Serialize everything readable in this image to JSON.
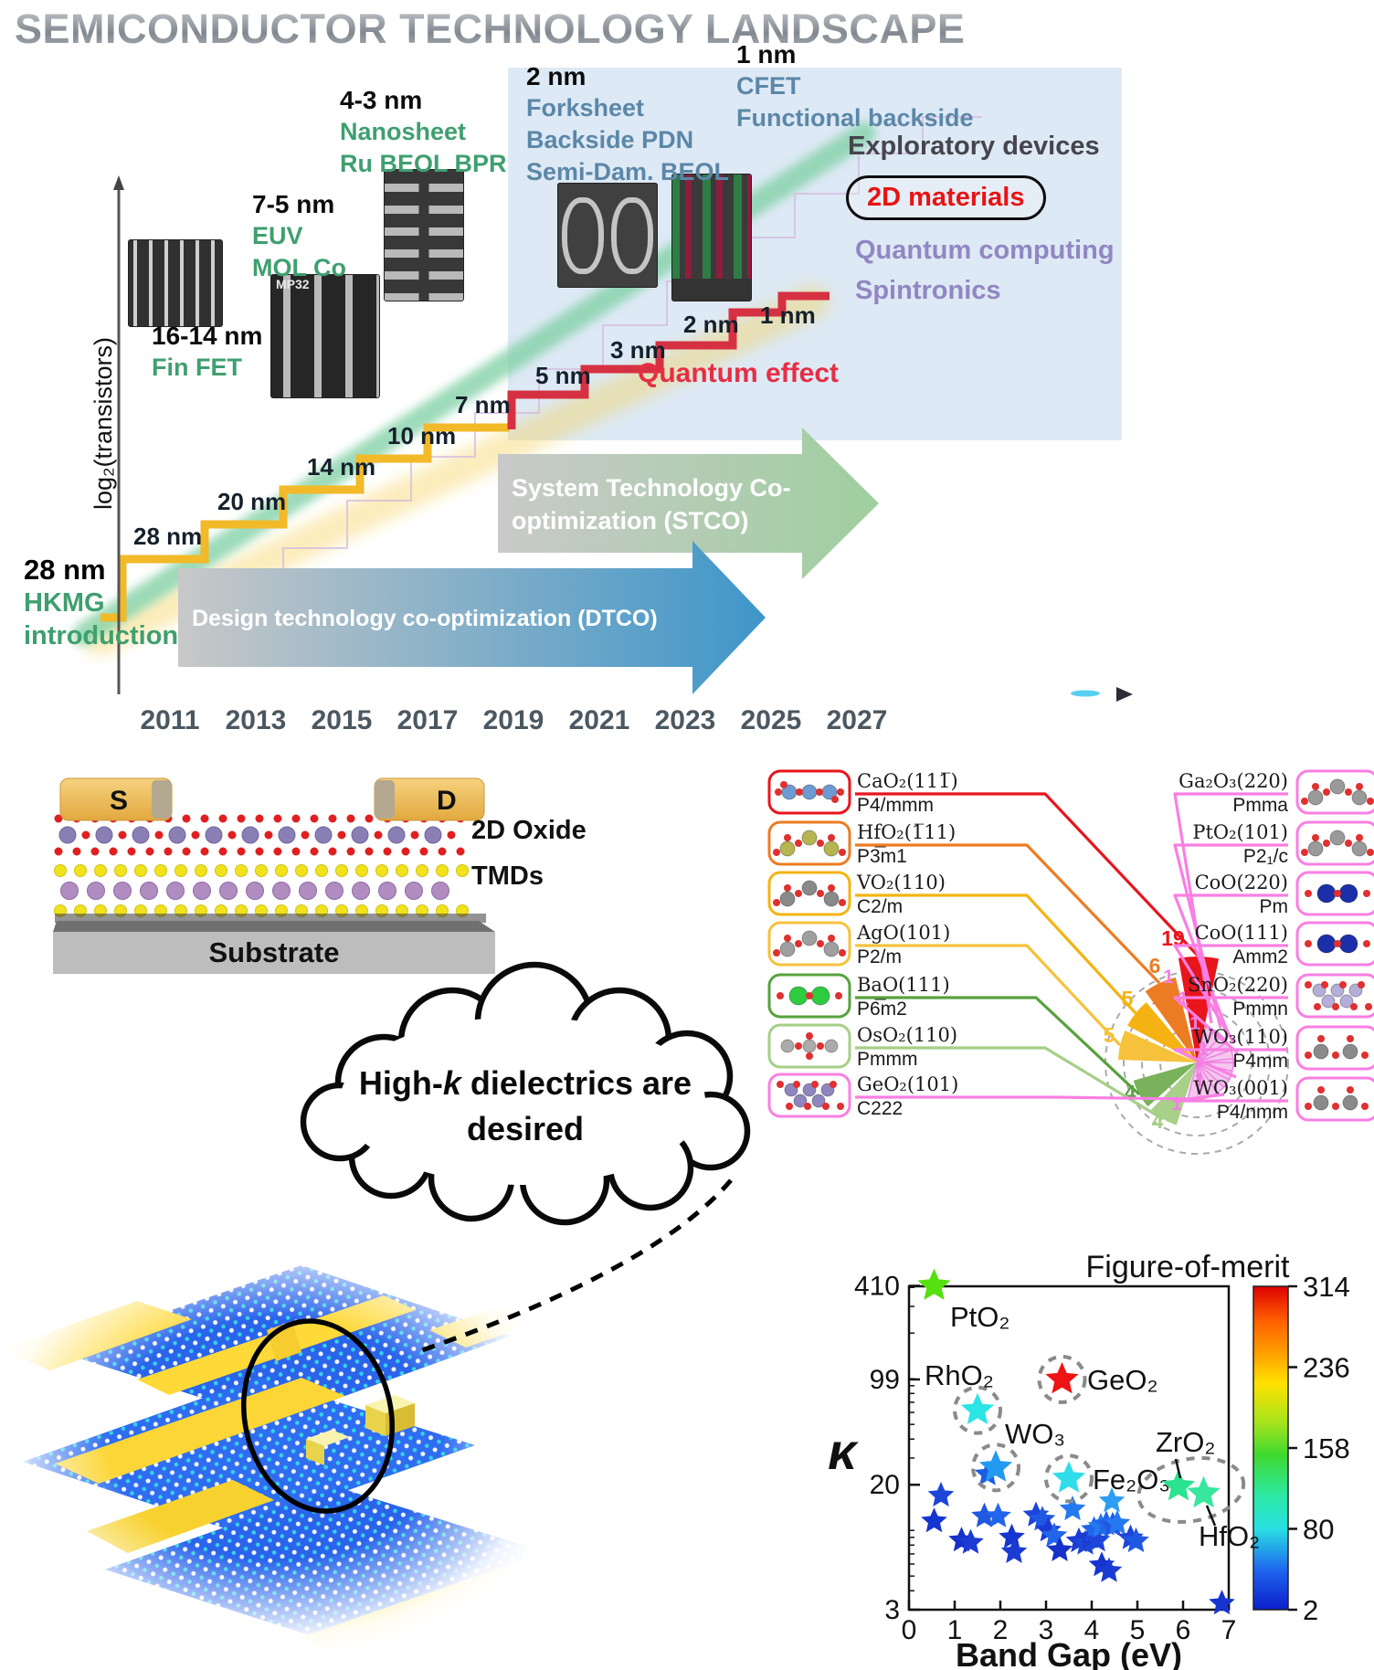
{
  "title": "SEMICONDUCTOR TECHNOLOGY LANDSCAPE",
  "roadmap": {
    "y_axis_label": "log₂(transistors)",
    "x_years": [
      "2011",
      "2013",
      "2015",
      "2017",
      "2019",
      "2021",
      "2023",
      "2025",
      "2027"
    ],
    "node_steps": [
      "28 nm",
      "20 nm",
      "14 nm",
      "10 nm",
      "7 nm",
      "5 nm",
      "3 nm",
      "2 nm",
      "1 nm"
    ],
    "milestones": [
      {
        "node": "16-14 nm",
        "lines": [
          "Fin FET"
        ],
        "palette": "green"
      },
      {
        "node": "7-5 nm",
        "lines": [
          "EUV",
          "MOL Co"
        ],
        "palette": "green"
      },
      {
        "node": "4-3 nm",
        "lines": [
          "Nanosheet",
          "Ru BEOL BPR"
        ],
        "palette": "green"
      },
      {
        "node": "2 nm",
        "lines": [
          "Forksheet",
          "Backside PDN",
          "Semi-Dam. BEOL"
        ],
        "palette": "blue"
      },
      {
        "node": "1 nm",
        "lines": [
          "CFET",
          "Functional backside"
        ],
        "palette": "blue"
      }
    ],
    "start_node": "28 nm",
    "start_lines": [
      "HKMG",
      "introduction"
    ],
    "exploratory_title": "Exploratory devices",
    "exploratory_highlight": "2D materials",
    "exploratory_items": [
      "Quantum computing",
      "Spintronics"
    ],
    "quantum_effect": "Quantum effect",
    "stco_line1": "System Technology Co-",
    "stco_line2": "optimization (STCO)",
    "dtco": "Design technology co-optimization (DTCO)",
    "tem_caption": "MP32"
  },
  "device": {
    "source": "S",
    "drain": "D",
    "layers": [
      "2D Oxide",
      "TMDs",
      "Substrate"
    ],
    "colors": {
      "oxygen": "#e02020",
      "oxide_metal": "#8a7fb5",
      "chalcogen": "#f2e21c",
      "tmd_metal": "#b08cc0",
      "contact_gold": "#f0b95a",
      "substrate": "#bdbdbd"
    }
  },
  "cloud": {
    "line1_pre": "High-",
    "line1_k": "k",
    "line1_post": " dielectrics are",
    "line2": "desired"
  },
  "colors": {
    "green_label": "#3f9f6f",
    "blue_label": "#5b87a8",
    "purple_label": "#9186c2",
    "dark_label": "#45454e",
    "red_accent": "#e81313",
    "quantum_region": "#dde9f5",
    "staircase_yellow": "#f2b929",
    "staircase_red": "#d63142",
    "trend_green": "#84d2a8",
    "stco_end": "#9fcf9f",
    "dtco_end": "#3f96c9"
  },
  "chart_data": [
    {
      "type": "polar_count",
      "title": "",
      "rings": [
        1,
        2,
        3,
        4
      ],
      "wedges": [
        {
          "material": "CaO₂(111̅)",
          "space_group": "P4/mmm",
          "count": 19,
          "color": "#e8151c",
          "wedge_fill": "#e8151c",
          "icon": "chain",
          "atom_color": "#6b9bd2",
          "side": "left"
        },
        {
          "material": "HfO₂(1̅11)",
          "space_group": "P3̅m1",
          "count": 6,
          "color": "#ec7c23",
          "wedge_fill": "#ec7c23",
          "icon": "zigzag",
          "atom_color": "#b5b551",
          "side": "left"
        },
        {
          "material": "VO₂(110)",
          "space_group": "C2/m",
          "count": 5,
          "color": "#f4b312",
          "wedge_fill": "#f4b312",
          "icon": "zigzag",
          "atom_color": "#8a8a8a",
          "side": "left"
        },
        {
          "material": "AgO(101)",
          "space_group": "P2/m",
          "count": 5,
          "color": "#f6c23c",
          "wedge_fill": "#f6c23c",
          "icon": "zigzag",
          "atom_color": "#9f9f9f",
          "side": "left"
        },
        {
          "material": "BaO(111)",
          "space_group": "P6̅m2",
          "count": 4,
          "color": "#57a23e",
          "wedge_fill": "#79b25a",
          "icon": "diatomic",
          "atom_color": "#2ecc40",
          "side": "left"
        },
        {
          "material": "OsO₂(110)",
          "space_group": "Pmmm",
          "count": 4,
          "color": "#a6cf87",
          "wedge_fill": "#a9d089",
          "icon": "cross",
          "atom_color": "#ababab",
          "side": "left"
        },
        {
          "material": "GeO₂(101)",
          "space_group": "C222",
          "count": 1,
          "color": "#f97fe3",
          "wedge_fill": "#f4c7ee",
          "icon": "cluster",
          "atom_color": "#8f86c0",
          "side": "left"
        },
        {
          "material": "Ga₂O₃(220)",
          "space_group": "Pmma",
          "count": 1,
          "color": "#f97fe3",
          "wedge_fill": "#f4c7ee",
          "icon": "zigzag",
          "atom_color": "#9a9a9a",
          "side": "right"
        },
        {
          "material": "PtO₂(101)",
          "space_group": "P2₁/c",
          "count": 1,
          "color": "#f97fe3",
          "wedge_fill": "#f4c7ee",
          "icon": "zigzag",
          "atom_color": "#9a9a9a",
          "side": "right"
        },
        {
          "material": "CoO(220)",
          "space_group": "Pm",
          "count": 1,
          "color": "#f97fe3",
          "wedge_fill": "#f4c7ee",
          "icon": "diatomic",
          "atom_color": "#1b2fa8",
          "side": "right"
        },
        {
          "material": "CoO(111)",
          "space_group": "Amm2",
          "count": 1,
          "color": "#f97fe3",
          "wedge_fill": "#f4c7ee",
          "icon": "diatomic",
          "atom_color": "#1b2fa8",
          "side": "right"
        },
        {
          "material": "SnO₂(220)",
          "space_group": "Pmmn",
          "count": 1,
          "color": "#f97fe3",
          "wedge_fill": "#f4c7ee",
          "icon": "cluster",
          "atom_color": "#b4aed8",
          "side": "right"
        },
        {
          "material": "WO₃(110)",
          "space_group": "P4mm",
          "count": 1,
          "color": "#f97fe3",
          "wedge_fill": "#f4c7ee",
          "icon": "branch",
          "atom_color": "#8a8a8a",
          "side": "right"
        },
        {
          "material": "WO₃(001)",
          "space_group": "P4/nmm",
          "count": 1,
          "color": "#f97fe3",
          "wedge_fill": "#f4c7ee",
          "icon": "branch",
          "atom_color": "#8a8a8a",
          "side": "right"
        }
      ]
    },
    {
      "type": "scatter",
      "xlabel": "Band Gap (eV)",
      "ylabel": "κ",
      "y_scale": "log",
      "x_ticks": [
        0,
        1,
        2,
        3,
        4,
        5,
        6,
        7
      ],
      "y_ticks": [
        3,
        20,
        99,
        410
      ],
      "xlim": [
        0,
        7.4
      ],
      "ylim": [
        3,
        410
      ],
      "colorbar": {
        "title": "Figure-of-merit",
        "ticks": [
          2,
          80,
          158,
          236,
          314
        ],
        "gradient": [
          [
            0,
            "#dd0000"
          ],
          [
            0.1,
            "#ff5a00"
          ],
          [
            0.22,
            "#ffa800"
          ],
          [
            0.3,
            "#ffe100"
          ],
          [
            0.42,
            "#a8e41c"
          ],
          [
            0.52,
            "#3fd92f"
          ],
          [
            0.65,
            "#2ce9a6"
          ],
          [
            0.75,
            "#29dfe2"
          ],
          [
            0.88,
            "#1e64ee"
          ],
          [
            1,
            "#0c1ecb"
          ]
        ]
      },
      "labeled_points": [
        {
          "label": "PtO₂",
          "x": 0.55,
          "k": 410,
          "c": "#55e010",
          "circled": "none"
        },
        {
          "label": "RhO₂",
          "x": 1.5,
          "k": 62,
          "c": "#2be4e4",
          "circled": "solo"
        },
        {
          "label": "GeO₂",
          "x": 3.35,
          "k": 99,
          "c": "#ef1414",
          "circled": "solo"
        },
        {
          "label": "WO₃",
          "x": 1.9,
          "k": 26,
          "c": "#2499f0",
          "circled": "solo"
        },
        {
          "label": "Fe₂O₃",
          "x": 3.5,
          "k": 22,
          "c": "#2fdde8",
          "circled": "solo"
        },
        {
          "label": "ZrO₂",
          "x": 5.9,
          "k": 19.5,
          "c": "#2be28f",
          "circled": "group"
        },
        {
          "label": "HfO₂",
          "x": 6.45,
          "k": 17.5,
          "c": "#38e69e",
          "circled": "group"
        }
      ],
      "points": [
        {
          "x": 0.7,
          "k": 17,
          "c": "#1d45d8"
        },
        {
          "x": 0.55,
          "k": 11.5,
          "c": "#1634cf"
        },
        {
          "x": 1.15,
          "k": 8.6,
          "c": "#1531c9"
        },
        {
          "x": 1.35,
          "k": 8.3,
          "c": "#1b3bd3"
        },
        {
          "x": 1.65,
          "k": 12.4,
          "c": "#2058e2"
        },
        {
          "x": 1.95,
          "k": 12.4,
          "c": "#2166ea"
        },
        {
          "x": 1.72,
          "k": 23.5,
          "c": "#1d5ce5"
        },
        {
          "x": 2.25,
          "k": 9,
          "c": "#1634cf"
        },
        {
          "x": 2.3,
          "k": 7.2,
          "c": "#1b3bd3"
        },
        {
          "x": 2.78,
          "k": 12.6,
          "c": "#1d45d8"
        },
        {
          "x": 2.92,
          "k": 11.8,
          "c": "#2058e2"
        },
        {
          "x": 3.05,
          "k": 10,
          "c": "#1b3bd3"
        },
        {
          "x": 3.18,
          "k": 9.2,
          "c": "#2166ea"
        },
        {
          "x": 3.3,
          "k": 7.4,
          "c": "#1531c9"
        },
        {
          "x": 3.58,
          "k": 13.8,
          "c": "#2479f0"
        },
        {
          "x": 3.72,
          "k": 8.5,
          "c": "#1b3bd3"
        },
        {
          "x": 3.86,
          "k": 8.2,
          "c": "#1d45d8"
        },
        {
          "x": 3.96,
          "k": 9,
          "c": "#1b3bd3"
        },
        {
          "x": 4.05,
          "k": 10.1,
          "c": "#2166ea"
        },
        {
          "x": 4.12,
          "k": 8.6,
          "c": "#1d45d8"
        },
        {
          "x": 4.2,
          "k": 10.6,
          "c": "#2479f0"
        },
        {
          "x": 4.32,
          "k": 11,
          "c": "#2166ea"
        },
        {
          "x": 4.46,
          "k": 10.8,
          "c": "#2058e2"
        },
        {
          "x": 4.22,
          "k": 5.9,
          "c": "#1634cf"
        },
        {
          "x": 4.38,
          "k": 5.4,
          "c": "#1b3bd3"
        },
        {
          "x": 4.44,
          "k": 15.6,
          "c": "#2e9df3"
        },
        {
          "x": 4.56,
          "k": 11.1,
          "c": "#2479f0"
        },
        {
          "x": 4.85,
          "k": 8.9,
          "c": "#1d45d8"
        },
        {
          "x": 4.97,
          "k": 8.5,
          "c": "#2058e2"
        },
        {
          "x": 6.85,
          "k": 3.3,
          "c": "#1634cf"
        }
      ]
    }
  ]
}
